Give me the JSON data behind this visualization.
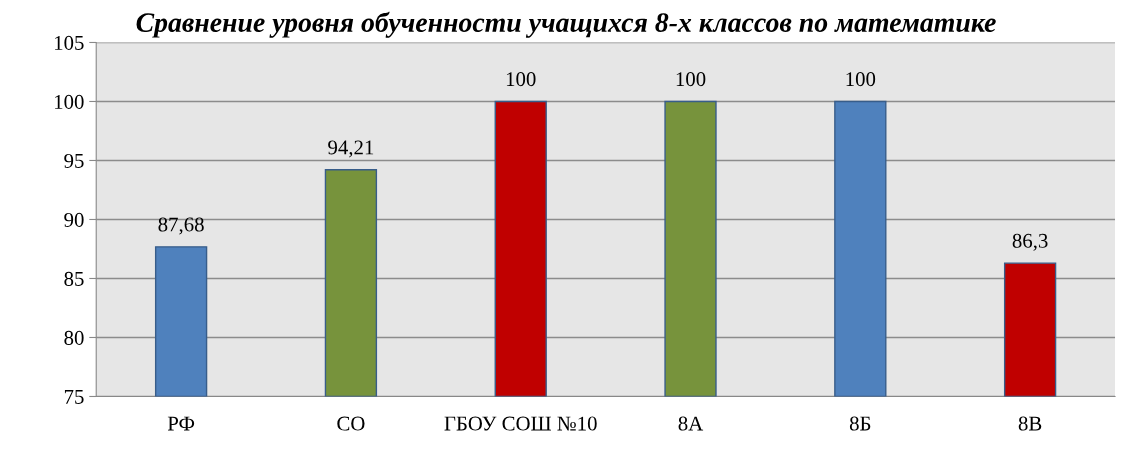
{
  "chart_data": {
    "type": "bar",
    "title": "Сравнение уровня обученности учащихся 8-х классов по математике",
    "categories": [
      "РФ",
      "СО",
      "ГБОУ СОШ №10",
      "8А",
      "8Б",
      "8В"
    ],
    "values": [
      87.68,
      94.21,
      100,
      100,
      100,
      86.3
    ],
    "value_labels": [
      "87,68",
      "94,21",
      "100",
      "100",
      "100",
      "86,3"
    ],
    "colors": [
      "#4f81bd",
      "#77933c",
      "#c00000",
      "#77933c",
      "#4f81bd",
      "#c00000"
    ],
    "ylim": [
      75,
      105
    ],
    "yticks": [
      75,
      80,
      85,
      90,
      95,
      100,
      105
    ],
    "grid": "y",
    "legend": false
  }
}
